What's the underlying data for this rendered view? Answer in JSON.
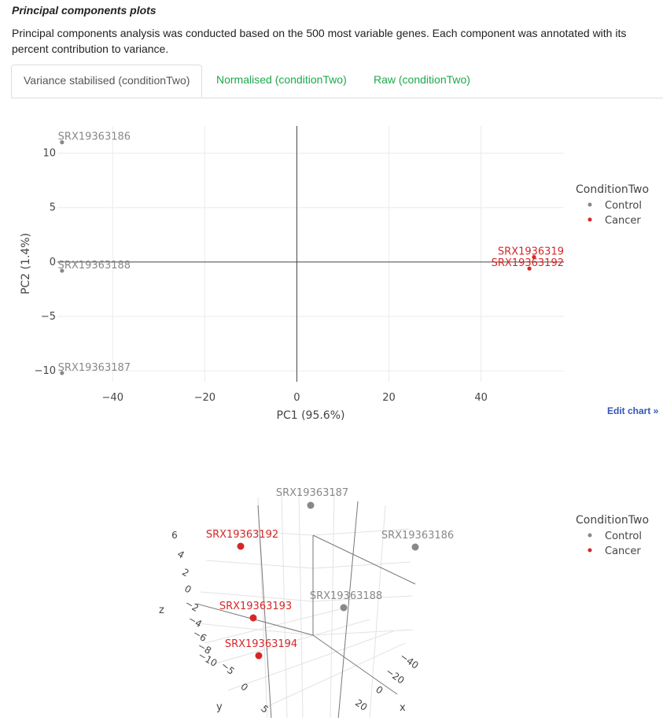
{
  "page": {
    "heading": "Principal components plots",
    "description": "Principal components analysis was conducted based on the 500 most variable genes. Each component was annotated with its percent contribution to variance."
  },
  "tabs": [
    {
      "label": "Variance stabilised (conditionTwo)",
      "active": true
    },
    {
      "label": "Normalised (conditionTwo)",
      "active": false
    },
    {
      "label": "Raw (conditionTwo)",
      "active": false
    }
  ],
  "edit_chart_label": "Edit chart »",
  "colors": {
    "control": "#888888",
    "cancer": "#d62728",
    "tab_link": "#1ea84b",
    "edit_link": "#3355bb"
  },
  "chart_data": [
    {
      "type": "scatter",
      "xlabel": "PC1 (95.6%)",
      "ylabel": "PC2 (1.4%)",
      "xlim": [
        -52,
        58
      ],
      "ylim": [
        -11,
        12.5
      ],
      "xticks": [
        -40,
        -20,
        0,
        20,
        40
      ],
      "yticks": [
        -10,
        -5,
        0,
        5,
        10
      ],
      "grid": true,
      "legend": {
        "title": "ConditionTwo",
        "placement": "right",
        "entries": [
          "Control",
          "Cancer"
        ]
      },
      "points": [
        {
          "label": "SRX19363186",
          "group": "Control",
          "x": -51,
          "y": 11
        },
        {
          "label": "SRX19363188",
          "group": "Control",
          "x": -51,
          "y": -0.8
        },
        {
          "label": "SRX19363187",
          "group": "Control",
          "x": -51,
          "y": -10.2
        },
        {
          "label": "SRX1936319",
          "group": "Cancer",
          "x": 51.5,
          "y": 0.45
        },
        {
          "label": "SRX19363192",
          "group": "Cancer",
          "x": 50.5,
          "y": -0.6
        }
      ]
    },
    {
      "type": "scatter",
      "dimensions": 3,
      "xlabel": "x",
      "ylabel": "y",
      "zlabel": "z",
      "xticks": [
        -40,
        -20,
        0,
        20
      ],
      "yticks": [
        -5,
        0,
        5
      ],
      "zticks": [
        6,
        4,
        2,
        0,
        -2,
        -4,
        -6,
        -8,
        -10
      ],
      "legend": {
        "title": "ConditionTwo",
        "placement": "right",
        "entries": [
          "Control",
          "Cancer"
        ]
      },
      "points": [
        {
          "label": "SRX19363187",
          "group": "Control"
        },
        {
          "label": "SRX19363186",
          "group": "Control"
        },
        {
          "label": "SRX19363188",
          "group": "Control"
        },
        {
          "label": "SRX19363192",
          "group": "Cancer"
        },
        {
          "label": "SRX19363193",
          "group": "Cancer"
        },
        {
          "label": "SRX19363194",
          "group": "Cancer"
        }
      ]
    }
  ]
}
